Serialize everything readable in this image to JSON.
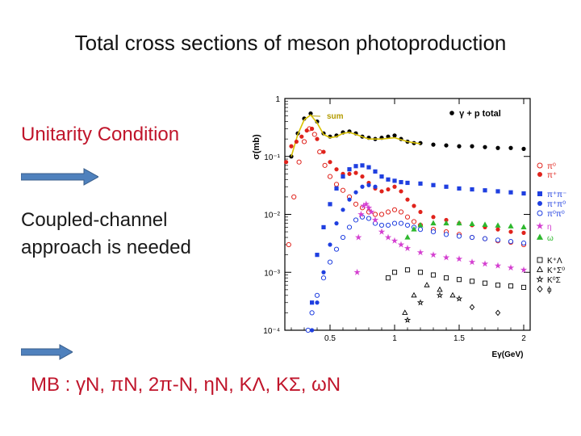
{
  "slide": {
    "title": "Total cross sections of meson photoproduction",
    "unitarity": "Unitarity  Condition",
    "coupled_line1": "Coupled-channel",
    "coupled_line2": "approach is needed",
    "mb_line": "MB : γN,  πN,  2π-N,  ηN, KΛ, KΣ, ωN",
    "accent_color": "#c0152b",
    "arrow_color": "#4f81bd"
  },
  "chart_data": {
    "type": "scatter",
    "yscale": "log",
    "title": "γ + p  total",
    "xlabel": "Eγ(GeV)",
    "ylabel": "σ(mb)",
    "xlim": [
      0.15,
      2.05
    ],
    "ylim": [
      0.0001,
      1
    ],
    "xticks": [
      0.5,
      1,
      1.5,
      2
    ],
    "xtick_labels": [
      "0.5",
      "1",
      "1.5",
      "2"
    ],
    "yticks": [
      1,
      0.1,
      0.01,
      0.001,
      0.0001
    ],
    "ytick_labels": [
      "1",
      "10⁻¹",
      "10⁻²",
      "10⁻³",
      "10⁻⁴"
    ],
    "annotation": "sum",
    "series": [
      {
        "name": "total",
        "label": "γ + p  total",
        "color": "#000000",
        "marker": "filled-circle",
        "x": [
          0.2,
          0.25,
          0.3,
          0.35,
          0.4,
          0.45,
          0.5,
          0.55,
          0.6,
          0.65,
          0.7,
          0.75,
          0.8,
          0.85,
          0.9,
          0.95,
          1.0,
          1.05,
          1.1,
          1.15,
          1.2,
          1.3,
          1.4,
          1.5,
          1.6,
          1.7,
          1.8,
          1.9,
          2.0
        ],
        "y": [
          0.1,
          0.25,
          0.45,
          0.55,
          0.4,
          0.25,
          0.22,
          0.23,
          0.26,
          0.27,
          0.25,
          0.22,
          0.21,
          0.2,
          0.21,
          0.22,
          0.23,
          0.2,
          0.18,
          0.17,
          0.17,
          0.16,
          0.155,
          0.15,
          0.15,
          0.145,
          0.14,
          0.14,
          0.135
        ]
      },
      {
        "name": "sum",
        "label": "sum",
        "color": "#d9c200",
        "marker": "line",
        "x": [
          0.2,
          0.25,
          0.3,
          0.35,
          0.4,
          0.45,
          0.5,
          0.55,
          0.6,
          0.65,
          0.7,
          0.8,
          0.9,
          1.0,
          1.1,
          1.2
        ],
        "y": [
          0.1,
          0.24,
          0.43,
          0.52,
          0.38,
          0.24,
          0.21,
          0.22,
          0.25,
          0.26,
          0.24,
          0.2,
          0.2,
          0.21,
          0.18,
          0.165
        ]
      },
      {
        "name": "pi0",
        "label": "π⁰",
        "color": "#e0231c",
        "marker": "open-circle",
        "x": [
          0.18,
          0.22,
          0.26,
          0.3,
          0.34,
          0.38,
          0.42,
          0.46,
          0.5,
          0.55,
          0.6,
          0.65,
          0.7,
          0.75,
          0.8,
          0.85,
          0.9,
          0.95,
          1.0,
          1.05,
          1.1,
          1.15,
          1.2,
          1.3,
          1.4,
          1.5,
          1.6,
          1.7,
          1.8,
          1.9,
          2.0
        ],
        "y": [
          0.003,
          0.02,
          0.08,
          0.18,
          0.3,
          0.24,
          0.12,
          0.07,
          0.045,
          0.033,
          0.026,
          0.02,
          0.015,
          0.013,
          0.011,
          0.01,
          0.01,
          0.011,
          0.012,
          0.011,
          0.009,
          0.0075,
          0.0065,
          0.0055,
          0.005,
          0.0045,
          0.004,
          0.0038,
          0.0035,
          0.0033,
          0.003
        ]
      },
      {
        "name": "pi+",
        "label": "π⁺",
        "color": "#e0231c",
        "marker": "filled-circle",
        "x": [
          0.16,
          0.2,
          0.24,
          0.28,
          0.32,
          0.36,
          0.4,
          0.45,
          0.5,
          0.55,
          0.6,
          0.65,
          0.7,
          0.75,
          0.8,
          0.85,
          0.9,
          0.95,
          1.0,
          1.05,
          1.1,
          1.15,
          1.2,
          1.3,
          1.4,
          1.5,
          1.6,
          1.7,
          1.8,
          1.9,
          2.0
        ],
        "y": [
          0.08,
          0.15,
          0.18,
          0.22,
          0.28,
          0.3,
          0.2,
          0.12,
          0.08,
          0.06,
          0.05,
          0.05,
          0.052,
          0.045,
          0.035,
          0.028,
          0.025,
          0.027,
          0.03,
          0.025,
          0.018,
          0.014,
          0.011,
          0.009,
          0.008,
          0.007,
          0.0065,
          0.006,
          0.0055,
          0.005,
          0.0048
        ]
      },
      {
        "name": "pi+pi-",
        "label": "π⁺π⁻",
        "color": "#1f3fe0",
        "marker": "filled-square",
        "x": [
          0.36,
          0.4,
          0.45,
          0.5,
          0.55,
          0.6,
          0.65,
          0.7,
          0.75,
          0.8,
          0.85,
          0.9,
          0.95,
          1.0,
          1.05,
          1.1,
          1.2,
          1.3,
          1.4,
          1.5,
          1.6,
          1.7,
          1.8,
          1.9,
          2.0
        ],
        "y": [
          0.0003,
          0.002,
          0.006,
          0.015,
          0.028,
          0.045,
          0.06,
          0.068,
          0.07,
          0.065,
          0.055,
          0.045,
          0.04,
          0.038,
          0.036,
          0.035,
          0.034,
          0.032,
          0.03,
          0.028,
          0.027,
          0.026,
          0.025,
          0.024,
          0.023
        ]
      },
      {
        "name": "pi+pi0",
        "label": "π⁺π⁰",
        "color": "#1f3fe0",
        "marker": "filled-circle",
        "x": [
          0.36,
          0.4,
          0.45,
          0.5,
          0.55,
          0.6,
          0.65,
          0.7,
          0.75,
          0.8,
          0.85
        ],
        "y": [
          0.0001,
          0.0003,
          0.001,
          0.003,
          0.007,
          0.012,
          0.018,
          0.024,
          0.03,
          0.032,
          0.03
        ]
      },
      {
        "name": "pi0pi0",
        "label": "π⁰π⁰",
        "color": "#1f3fe0",
        "marker": "open-circle",
        "x": [
          0.33,
          0.36,
          0.4,
          0.45,
          0.5,
          0.55,
          0.6,
          0.65,
          0.7,
          0.75,
          0.8,
          0.85,
          0.9,
          0.95,
          1.0,
          1.05,
          1.1,
          1.15,
          1.2,
          1.3,
          1.4,
          1.5,
          1.6,
          1.7,
          1.8,
          1.9,
          2.0
        ],
        "y": [
          0.0001,
          0.0002,
          0.0004,
          0.0008,
          0.0015,
          0.0025,
          0.004,
          0.006,
          0.008,
          0.009,
          0.0085,
          0.007,
          0.0065,
          0.0065,
          0.007,
          0.007,
          0.0065,
          0.006,
          0.0055,
          0.005,
          0.0045,
          0.0042,
          0.004,
          0.0038,
          0.0036,
          0.0034,
          0.0032
        ]
      },
      {
        "name": "eta",
        "label": "η",
        "color": "#d43fd0",
        "marker": "star",
        "x": [
          0.71,
          0.72,
          0.74,
          0.76,
          0.78,
          0.8,
          0.82,
          0.85,
          0.9,
          0.95,
          1.0,
          1.05,
          1.1,
          1.2,
          1.3,
          1.4,
          1.5,
          1.6,
          1.7,
          1.8,
          1.9,
          2.0
        ],
        "y": [
          0.001,
          0.004,
          0.01,
          0.014,
          0.015,
          0.013,
          0.011,
          0.008,
          0.005,
          0.004,
          0.0035,
          0.003,
          0.0026,
          0.0022,
          0.002,
          0.0018,
          0.0017,
          0.0015,
          0.0014,
          0.0013,
          0.0012,
          0.0011
        ]
      },
      {
        "name": "omega",
        "label": "ω",
        "color": "#2eb82e",
        "marker": "filled-triangle",
        "x": [
          1.1,
          1.15,
          1.2,
          1.3,
          1.4,
          1.5,
          1.6,
          1.7,
          1.8,
          1.9,
          2.0
        ],
        "y": [
          0.004,
          0.0055,
          0.0065,
          0.007,
          0.007,
          0.007,
          0.0068,
          0.0066,
          0.0064,
          0.0062,
          0.006
        ]
      },
      {
        "name": "K+Lambda",
        "label": "K⁺Λ",
        "color": "#000000",
        "marker": "open-square",
        "x": [
          0.95,
          1.0,
          1.1,
          1.2,
          1.3,
          1.4,
          1.5,
          1.6,
          1.7,
          1.8,
          1.9,
          2.0
        ],
        "y": [
          0.0008,
          0.001,
          0.0011,
          0.001,
          0.0009,
          0.0008,
          0.00075,
          0.0007,
          0.00065,
          0.0006,
          0.00058,
          0.00055
        ]
      },
      {
        "name": "K+Sigma0",
        "label": "K⁺Σ⁰",
        "color": "#000000",
        "marker": "open-triangle",
        "x": [
          1.08,
          1.15,
          1.25,
          1.35,
          1.45
        ],
        "y": [
          0.0002,
          0.0004,
          0.0006,
          0.0005,
          0.0004
        ]
      },
      {
        "name": "K0Sigma",
        "label": "K⁰Σ",
        "color": "#000000",
        "marker": "open-star",
        "x": [
          1.1,
          1.2,
          1.35,
          1.5
        ],
        "y": [
          0.00015,
          0.0003,
          0.0004,
          0.00035
        ]
      },
      {
        "name": "phi",
        "label": "ϕ",
        "color": "#000000",
        "marker": "open-diamond",
        "x": [
          1.6,
          1.8
        ],
        "y": [
          0.00025,
          0.0002
        ]
      }
    ]
  }
}
